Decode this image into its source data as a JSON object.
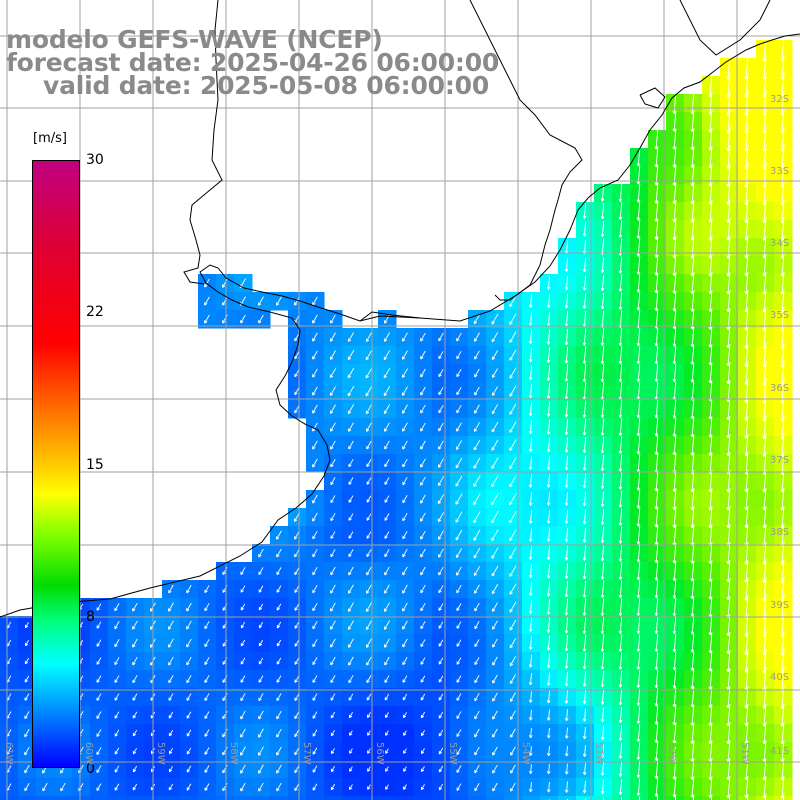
{
  "title": {
    "line1": "modelo GEFS-WAVE (NCEP)",
    "line2": "forecast date: 2025-04-26 06:00:00",
    "line3": "valid date: 2025-05-08 06:00:00"
  },
  "colorbar": {
    "unit": "[m/s]",
    "ticks": [
      "30",
      "22",
      "15",
      "8",
      "0"
    ],
    "range": [
      0,
      30
    ],
    "tick_values": [
      30,
      22,
      15,
      8,
      0
    ],
    "colors": [
      "#0000ff",
      "#00b4ff",
      "#00ffff",
      "#00ff80",
      "#00dc00",
      "#7cff00",
      "#ffff00",
      "#ffb400",
      "#ff6400",
      "#ff0000",
      "#c00080"
    ]
  },
  "map": {
    "lon_labels": [
      "61W",
      "60W",
      "59W",
      "58W",
      "57W",
      "56W",
      "55W",
      "54W",
      "53W",
      "52W",
      "51W"
    ],
    "lat_labels": [
      "32S",
      "33S",
      "34S",
      "35S",
      "36S",
      "37S",
      "38S",
      "39S",
      "40S",
      "41S"
    ],
    "lon_range": [
      -61.5,
      -50.5
    ],
    "lat_range": [
      -41.5,
      -30.7
    ],
    "wind_direction": "from north / north-east (arrows pointing south-west)",
    "colors": {
      "land": "#ffffff",
      "grid": "#a0a0a0",
      "coast": "#000000",
      "arrow": "#ffffff"
    }
  }
}
